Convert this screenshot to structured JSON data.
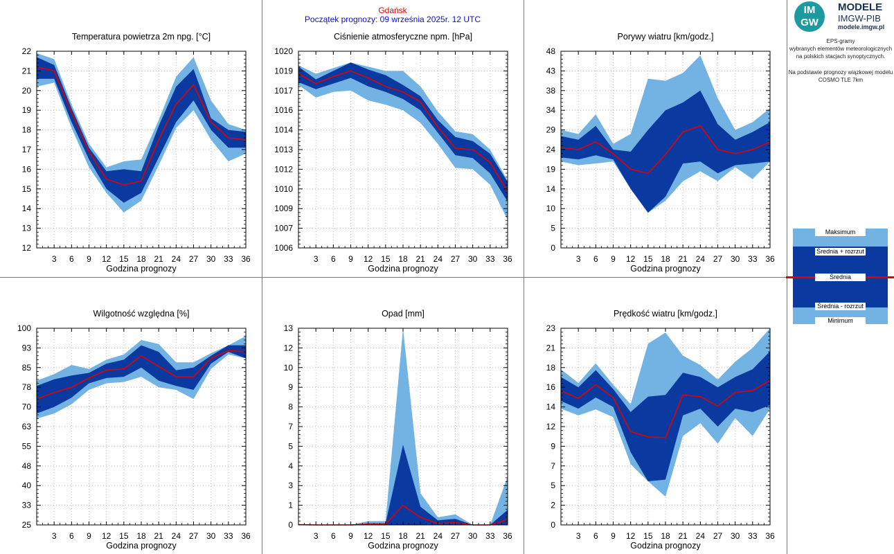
{
  "header": {
    "city": "Gdańsk",
    "forecast_start": "Początek prognozy: 09 września 2025r. 12 UTC"
  },
  "branding": {
    "logo_mark_top": "IM",
    "logo_mark_bottom": "GW",
    "title": "MODELE",
    "subtitle": "IMGW-PIB",
    "site": "modele.imgw.pl"
  },
  "description": {
    "line1": "EPS-gramy",
    "line2": "wybranych elementów meteorologicznych",
    "line3": "na polskich stacjach  synoptycznych.",
    "line4": "Na podstawie prognozy wiązkowej modelu",
    "line5": "COSMO TLE 7km"
  },
  "legend": {
    "max": "Maksimum",
    "mean_plus_spread": "Średnia + rozrzut",
    "mean": "Średnia",
    "mean_minus_spread": "Średnia - rozrzut",
    "min": "Minimum"
  },
  "colors": {
    "outer_band": "#73b3e3",
    "inner_band": "#0a3aa0",
    "mean_line": "#e00000",
    "city_text": "#e00000",
    "start_text": "#1010c0"
  },
  "chart_data": [
    {
      "type": "area",
      "title": "Temperatura powietrza 2m npg. [°C]",
      "xlabel": "Godzina prognozy",
      "ylabel": "",
      "ylim": [
        12,
        22
      ],
      "yticks": [
        12,
        13,
        14,
        15,
        16,
        17,
        18,
        19,
        20,
        21,
        22
      ],
      "ytick_labels": [
        "12",
        "13",
        "14",
        "15",
        "16",
        "17",
        "18",
        "19",
        "20",
        "21",
        "22"
      ],
      "x": [
        0,
        3,
        6,
        9,
        12,
        15,
        18,
        21,
        24,
        27,
        30,
        33,
        36
      ],
      "xtick_labels": [
        "3",
        "6",
        "9",
        "12",
        "15",
        "18",
        "21",
        "24",
        "27",
        "30",
        "33",
        "36"
      ],
      "series": [
        {
          "name": "Maksimum",
          "values": [
            21.9,
            21.6,
            19.3,
            17.3,
            16.1,
            16.4,
            16.5,
            18.5,
            20.7,
            21.7,
            19.5,
            18.3,
            18.0
          ]
        },
        {
          "name": "Średnia + rozrzut",
          "values": [
            21.7,
            21.3,
            19.1,
            17.1,
            15.9,
            16.0,
            15.9,
            18.2,
            20.2,
            21.1,
            18.6,
            18.0,
            17.9
          ]
        },
        {
          "name": "Średnia",
          "values": [
            21.2,
            21.0,
            18.9,
            16.9,
            15.5,
            15.2,
            15.4,
            17.5,
            19.3,
            20.3,
            18.4,
            17.6,
            17.5
          ]
        },
        {
          "name": "Średnia - rozrzut",
          "values": [
            20.6,
            20.6,
            18.4,
            16.5,
            15.0,
            14.3,
            14.8,
            16.6,
            18.4,
            19.5,
            18.0,
            17.1,
            17.1
          ]
        },
        {
          "name": "Minimum",
          "values": [
            20.2,
            20.4,
            18.1,
            16.1,
            14.8,
            13.8,
            14.4,
            16.2,
            18.1,
            19.0,
            17.5,
            16.4,
            16.8
          ]
        }
      ]
    },
    {
      "type": "area",
      "title": "Ciśnienie atmosferyczne npm. [hPa]",
      "xlabel": "Godzina prognozy",
      "ylabel": "",
      "ylim": [
        1006,
        1020
      ],
      "yticks": [
        1006,
        1007.4,
        1008.8,
        1010.2,
        1011.6,
        1013.0,
        1014.4,
        1015.8,
        1017.2,
        1018.6,
        1020
      ],
      "ytick_labels": [
        "1006",
        "1007",
        "1009",
        "1010",
        "1012",
        "1013",
        "1014",
        "1016",
        "1017",
        "1019",
        "1020"
      ],
      "x": [
        0,
        3,
        6,
        9,
        12,
        15,
        18,
        21,
        24,
        27,
        30,
        33,
        36
      ],
      "xtick_labels": [
        "3",
        "6",
        "9",
        "12",
        "15",
        "18",
        "21",
        "24",
        "27",
        "30",
        "33",
        "36"
      ],
      "series": [
        {
          "name": "Maksimum",
          "values": [
            1019.0,
            1018.4,
            1018.8,
            1019.2,
            1018.9,
            1018.6,
            1018.6,
            1017.5,
            1015.7,
            1014.3,
            1014.1,
            1013.0,
            1010.8
          ]
        },
        {
          "name": "Średnia + rozrzut",
          "values": [
            1018.9,
            1018.0,
            1018.6,
            1019.2,
            1018.7,
            1018.3,
            1017.6,
            1016.8,
            1015.1,
            1013.9,
            1013.6,
            1012.7,
            1010.7
          ]
        },
        {
          "name": "Średnia",
          "values": [
            1018.4,
            1017.7,
            1018.2,
            1018.6,
            1018.1,
            1017.5,
            1017.1,
            1016.4,
            1014.6,
            1013.1,
            1013.0,
            1012.1,
            1010.0
          ]
        },
        {
          "name": "Średnia - rozrzut",
          "values": [
            1017.8,
            1017.3,
            1017.7,
            1018.1,
            1017.5,
            1017.1,
            1016.6,
            1015.8,
            1014.2,
            1012.6,
            1012.4,
            1011.3,
            1009.3
          ]
        },
        {
          "name": "Minimum",
          "values": [
            1017.6,
            1016.7,
            1017.1,
            1017.2,
            1016.5,
            1016.2,
            1015.8,
            1014.9,
            1013.4,
            1011.7,
            1011.6,
            1010.5,
            1008.0
          ]
        }
      ]
    },
    {
      "type": "area",
      "title": "Porywy wiatru [km/godz.]",
      "xlabel": "Godzina prognozy",
      "ylabel": "",
      "ylim": [
        0,
        48
      ],
      "yticks": [
        0,
        4.8,
        9.6,
        14.4,
        19.2,
        24,
        28.8,
        33.6,
        38.4,
        43.2,
        48
      ],
      "ytick_labels": [
        "0",
        "5",
        "10",
        "14",
        "19",
        "24",
        "29",
        "34",
        "38",
        "43",
        "48"
      ],
      "x": [
        0,
        3,
        6,
        9,
        12,
        15,
        18,
        21,
        24,
        27,
        30,
        33,
        36
      ],
      "xtick_labels": [
        "3",
        "6",
        "9",
        "12",
        "15",
        "18",
        "21",
        "24",
        "27",
        "30",
        "33",
        "36"
      ],
      "series": [
        {
          "name": "Maksimum",
          "values": [
            28.8,
            27.8,
            32.6,
            25.4,
            27.8,
            41.3,
            40.8,
            42.7,
            47.0,
            36.5,
            28.8,
            30.7,
            34.1
          ]
        },
        {
          "name": "Średnia + rozrzut",
          "values": [
            27.3,
            26.4,
            29.8,
            24.0,
            23.5,
            28.8,
            33.6,
            35.5,
            38.4,
            30.2,
            26.4,
            28.3,
            30.7
          ]
        },
        {
          "name": "Średnia",
          "values": [
            24.5,
            24.0,
            25.9,
            23.0,
            19.2,
            18.2,
            22.8,
            28.3,
            29.8,
            24.0,
            23.0,
            24.0,
            25.9
          ]
        },
        {
          "name": "Średnia - rozrzut",
          "values": [
            22.1,
            21.6,
            22.6,
            21.6,
            14.4,
            8.6,
            12.5,
            20.6,
            21.1,
            18.2,
            20.2,
            20.6,
            21.1
          ]
        },
        {
          "name": "Minimum",
          "values": [
            21.1,
            20.2,
            20.6,
            21.1,
            14.4,
            8.6,
            11.5,
            16.3,
            18.7,
            16.3,
            19.7,
            16.8,
            21.1
          ]
        }
      ]
    },
    {
      "type": "area",
      "title": "Wilgotność względna [%]",
      "xlabel": "Godzina prognozy",
      "ylabel": "",
      "ylim": [
        25,
        100
      ],
      "yticks": [
        25,
        32.5,
        40,
        47.5,
        55,
        62.5,
        70,
        77.5,
        85,
        92.5,
        100
      ],
      "ytick_labels": [
        "25",
        "33",
        "40",
        "48",
        "55",
        "63",
        "70",
        "78",
        "85",
        "93",
        "100"
      ],
      "x": [
        0,
        3,
        6,
        9,
        12,
        15,
        18,
        21,
        24,
        27,
        30,
        33,
        36
      ],
      "xtick_labels": [
        "3",
        "6",
        "9",
        "12",
        "15",
        "18",
        "21",
        "24",
        "27",
        "30",
        "33",
        "36"
      ],
      "series": [
        {
          "name": "Maksimum",
          "values": [
            80.0,
            82.5,
            86.0,
            84.5,
            88.0,
            90.0,
            95.5,
            94.0,
            87.0,
            87.0,
            90.5,
            93.5,
            97.0
          ]
        },
        {
          "name": "Średnia + rozrzut",
          "values": [
            78.0,
            80.5,
            82.0,
            83.0,
            86.5,
            88.0,
            93.5,
            91.0,
            84.0,
            85.0,
            89.5,
            93.5,
            93.5
          ]
        },
        {
          "name": "Średnia",
          "values": [
            73.0,
            75.5,
            77.5,
            81.0,
            84.0,
            84.5,
            89.5,
            85.5,
            81.5,
            81.5,
            88.5,
            91.5,
            91.0
          ]
        },
        {
          "name": "Średnia - rozrzut",
          "values": [
            67.5,
            70.0,
            73.5,
            79.0,
            81.0,
            81.5,
            85.0,
            80.0,
            78.0,
            76.5,
            86.5,
            91.0,
            88.5
          ]
        },
        {
          "name": "Minimum",
          "values": [
            65.5,
            67.5,
            71.0,
            76.5,
            79.0,
            79.5,
            81.5,
            77.5,
            76.5,
            73.0,
            84.5,
            90.0,
            88.5
          ]
        }
      ]
    },
    {
      "type": "area",
      "title": "Opad [mm]",
      "xlabel": "Godzina prognozy",
      "ylabel": "",
      "ylim": [
        0,
        13
      ],
      "yticks": [
        0,
        1.3,
        2.6,
        3.9,
        5.2,
        6.5,
        7.8,
        9.1,
        10.4,
        11.7,
        13
      ],
      "ytick_labels": [
        "0",
        "1",
        "3",
        "4",
        "5",
        "7",
        "8",
        "9",
        "10",
        "12",
        "13"
      ],
      "x": [
        0,
        3,
        6,
        9,
        12,
        15,
        18,
        21,
        24,
        27,
        30,
        33,
        36
      ],
      "xtick_labels": [
        "3",
        "6",
        "9",
        "12",
        "15",
        "18",
        "21",
        "24",
        "27",
        "30",
        "33",
        "36"
      ],
      "series": [
        {
          "name": "Maksimum",
          "values": [
            0.05,
            0.0,
            0.0,
            0.0,
            0.25,
            0.25,
            13.0,
            2.1,
            0.5,
            0.7,
            0.0,
            0.0,
            3.2
          ]
        },
        {
          "name": "Średnia + rozrzut",
          "values": [
            0.0,
            0.0,
            0.0,
            0.0,
            0.1,
            0.1,
            5.3,
            1.2,
            0.3,
            0.4,
            0.0,
            0.0,
            1.0
          ]
        },
        {
          "name": "Średnia",
          "values": [
            0.02,
            0.0,
            0.0,
            0.0,
            0.05,
            0.05,
            1.3,
            0.5,
            0.1,
            0.15,
            0.0,
            0.0,
            0.35
          ]
        },
        {
          "name": "Średnia - rozrzut",
          "values": [
            0.0,
            0.0,
            0.0,
            0.0,
            0.0,
            0.0,
            0.0,
            0.0,
            0.0,
            0.0,
            0.0,
            0.0,
            0.0
          ]
        },
        {
          "name": "Minimum",
          "values": [
            0.0,
            0.0,
            0.0,
            0.0,
            0.0,
            0.0,
            0.0,
            0.0,
            0.0,
            0.0,
            0.0,
            0.0,
            0.0
          ]
        }
      ]
    },
    {
      "type": "area",
      "title": "Prędkość wiatru [km/godz.]",
      "xlabel": "Godzina prognozy",
      "ylabel": "",
      "ylim": [
        0,
        23
      ],
      "yticks": [
        0,
        2.3,
        4.6,
        6.9,
        9.2,
        11.5,
        13.8,
        16.1,
        18.4,
        20.7,
        23
      ],
      "ytick_labels": [
        "0",
        "2",
        "5",
        "7",
        "9",
        "12",
        "14",
        "16",
        "18",
        "21",
        "23"
      ],
      "x": [
        0,
        3,
        6,
        9,
        12,
        15,
        18,
        21,
        24,
        27,
        30,
        33,
        36
      ],
      "xtick_labels": [
        "3",
        "6",
        "9",
        "12",
        "15",
        "18",
        "21",
        "24",
        "27",
        "30",
        "33",
        "36"
      ],
      "series": [
        {
          "name": "Maksimum",
          "values": [
            18.2,
            16.6,
            18.9,
            16.4,
            14.1,
            21.2,
            22.5,
            19.8,
            18.7,
            17.0,
            19.1,
            20.7,
            23.0
          ]
        },
        {
          "name": "Średnia + rozrzut",
          "values": [
            17.3,
            16.1,
            18.1,
            15.9,
            13.2,
            15.0,
            15.2,
            17.8,
            17.3,
            16.1,
            17.3,
            18.2,
            20.3
          ]
        },
        {
          "name": "Średnia",
          "values": [
            15.7,
            14.8,
            16.4,
            14.9,
            10.9,
            10.3,
            10.2,
            15.2,
            15.0,
            13.9,
            15.5,
            15.7,
            16.9
          ]
        },
        {
          "name": "Średnia - rozrzut",
          "values": [
            14.5,
            13.6,
            14.9,
            13.8,
            8.5,
            5.1,
            5.3,
            12.8,
            13.6,
            11.5,
            13.6,
            13.2,
            14.0
          ]
        },
        {
          "name": "Minimum",
          "values": [
            13.6,
            12.8,
            13.5,
            12.6,
            7.1,
            5.1,
            3.3,
            10.4,
            11.9,
            9.5,
            12.5,
            10.4,
            13.6
          ]
        }
      ]
    }
  ]
}
